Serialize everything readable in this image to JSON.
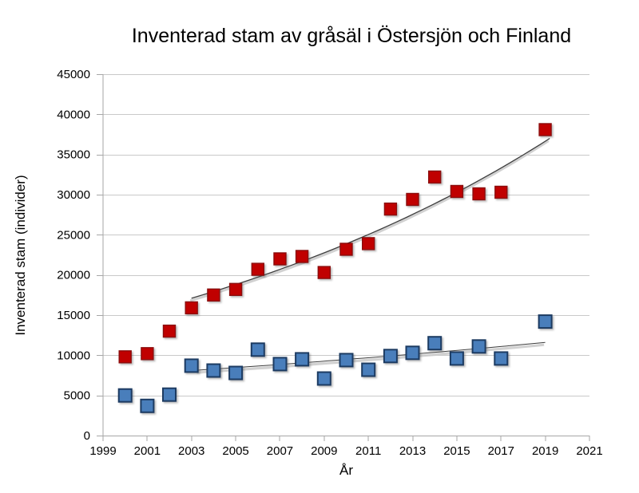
{
  "palette": {
    "background": "#ffffff",
    "grid": "#c9c9c9",
    "axis": "#a6a6a6",
    "tick_label": "#000000",
    "trend_line": "#3d3d3d",
    "trend_shadow": "#cccccc"
  },
  "chart_data": {
    "type": "scatter",
    "title": "Inventerad stam av gråsäl i Östersjön och Finland",
    "xlabel": "År",
    "ylabel": "Inventerad stam (individer)",
    "xlim": [
      1999,
      2021
    ],
    "ylim": [
      0,
      45000
    ],
    "x_ticks": [
      1999,
      2001,
      2003,
      2005,
      2007,
      2009,
      2011,
      2013,
      2015,
      2017,
      2019,
      2021
    ],
    "y_ticks": [
      0,
      5000,
      10000,
      15000,
      20000,
      25000,
      30000,
      35000,
      40000,
      45000
    ],
    "grid": "horizontal-only",
    "legend": "none",
    "x": [
      2000,
      2001,
      2002,
      2003,
      2004,
      2005,
      2006,
      2007,
      2008,
      2009,
      2010,
      2011,
      2012,
      2013,
      2014,
      2015,
      2016,
      2017,
      2019
    ],
    "series": [
      {
        "name": "red-series",
        "marker": "square",
        "fill": "#C00000",
        "stroke": "#8B1010",
        "marker_size": 15,
        "values": [
          9800,
          10200,
          13000,
          15900,
          17500,
          18200,
          20700,
          22000,
          22300,
          20300,
          23200,
          23900,
          28200,
          29400,
          32200,
          30400,
          30100,
          30300,
          38100
        ],
        "trendline": {
          "type": "exponential",
          "from_x": 2003,
          "from_y": 17100,
          "to_x": 2019.2,
          "to_y": 37000,
          "width": 1.3
        }
      },
      {
        "name": "blue-series",
        "marker": "square",
        "fill": "#4A7EBB",
        "stroke": "#1F3B62",
        "marker_size": 16,
        "values": [
          5000,
          3700,
          5100,
          8700,
          8100,
          7800,
          10700,
          8900,
          9500,
          7100,
          9400,
          8200,
          9900,
          10300,
          11500,
          9600,
          11100,
          9600,
          14200
        ],
        "trendline": {
          "type": "exponential",
          "from_x": 2003.3,
          "from_y": 8150,
          "to_x": 2019,
          "to_y": 11600,
          "width": 1.0
        }
      }
    ]
  }
}
